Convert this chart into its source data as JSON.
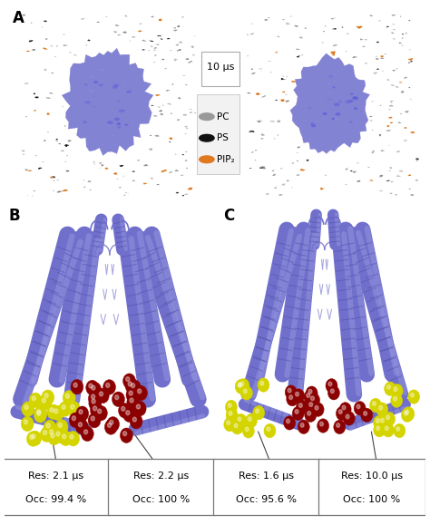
{
  "panel_A_label": "A",
  "panel_B_label": "B",
  "panel_C_label": "C",
  "arrow_text": "10 μs",
  "legend_items": [
    {
      "label": "PC",
      "color": "#999999"
    },
    {
      "label": "PS",
      "color": "#111111"
    },
    {
      "label": "PIP₂",
      "color": "#E07820"
    }
  ],
  "boxes": [
    {
      "res": "Res: 2.1 μs",
      "occ": "Occ: 99.4 %"
    },
    {
      "res": "Res: 2.2 μs",
      "occ": "Occ: 100 %"
    },
    {
      "res": "Res: 1.6 μs",
      "occ": "Occ: 95.6 %"
    },
    {
      "res": "Res: 10.0 μs",
      "occ": "Occ: 100 %"
    }
  ],
  "bg_color": "#ffffff",
  "protein_color": "#7878d0",
  "protein_color2": "#8888dd",
  "lipid_gray": "#888888",
  "lipid_black": "#1a1a1a",
  "lipid_orange": "#D87010",
  "yellow_lipid": "#d4d400",
  "red_lipid": "#8b0000",
  "helix_color": "#7070cc",
  "helix_light": "#9090dd",
  "helix_dark": "#5050aa",
  "line_color": "#444444",
  "font_size_label": 12,
  "font_size_box": 8,
  "font_size_arrow": 8,
  "font_size_legend": 7.5
}
